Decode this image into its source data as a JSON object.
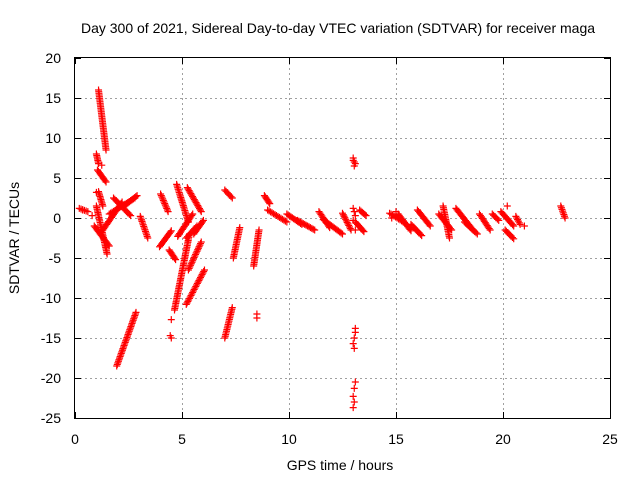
{
  "chart_data": {
    "type": "scatter",
    "title": "Day 300 of 2021, Sidereal Day-to-day VTEC variation (SDTVAR) for receiver maga",
    "xlabel": "GPS time / hours",
    "ylabel": "SDTVAR / TECUs",
    "xlim": [
      0,
      25
    ],
    "ylim": [
      -25,
      20
    ],
    "xticks": [
      0,
      5,
      10,
      15,
      20,
      25
    ],
    "yticks": [
      20,
      15,
      10,
      5,
      0,
      -5,
      -10,
      -15,
      -20,
      -25
    ],
    "grid": true,
    "marker": "+",
    "marker_color": "#ff0000",
    "segments": [
      {
        "x0": 0.2,
        "y0": 1.2,
        "x1": 0.6,
        "y1": 0.8
      },
      {
        "x0": 1.0,
        "y0": 8.0,
        "x1": 1.1,
        "y1": 6.8
      },
      {
        "x0": 1.1,
        "y0": 16.0,
        "x1": 1.45,
        "y1": 8.5
      },
      {
        "x0": 1.05,
        "y0": 6.0,
        "x1": 1.45,
        "y1": 4.5
      },
      {
        "x0": 1.1,
        "y0": 3.3,
        "x1": 1.3,
        "y1": 1.5
      },
      {
        "x0": 1.0,
        "y0": 1.5,
        "x1": 1.5,
        "y1": -4.5
      },
      {
        "x0": 0.9,
        "y0": -1.0,
        "x1": 1.6,
        "y1": -3.5
      },
      {
        "x0": 1.3,
        "y0": -1.5,
        "x1": 2.2,
        "y1": 2.0
      },
      {
        "x0": 1.6,
        "y0": 0.5,
        "x1": 2.8,
        "y1": 2.5
      },
      {
        "x0": 1.8,
        "y0": 2.5,
        "x1": 2.6,
        "y1": 0.3
      },
      {
        "x0": 2.3,
        "y0": 1.5,
        "x1": 2.9,
        "y1": 2.8
      },
      {
        "x0": 1.95,
        "y0": -18.5,
        "x1": 2.85,
        "y1": -11.8
      },
      {
        "x0": 3.05,
        "y0": 0.2,
        "x1": 3.4,
        "y1": -2.5
      },
      {
        "x0": 4.0,
        "y0": 3.0,
        "x1": 4.35,
        "y1": 0.8
      },
      {
        "x0": 3.95,
        "y0": -3.6,
        "x1": 4.5,
        "y1": -1.6
      },
      {
        "x0": 4.4,
        "y0": -4.0,
        "x1": 4.7,
        "y1": -5.2
      },
      {
        "x0": 4.75,
        "y0": 4.2,
        "x1": 5.3,
        "y1": -0.5
      },
      {
        "x0": 4.8,
        "y0": -2.3,
        "x1": 5.5,
        "y1": 0.5
      },
      {
        "x0": 4.65,
        "y0": -11.5,
        "x1": 5.35,
        "y1": -2.0
      },
      {
        "x0": 5.2,
        "y0": -2.5,
        "x1": 5.7,
        "y1": -1.0
      },
      {
        "x0": 5.2,
        "y0": -10.8,
        "x1": 6.05,
        "y1": -6.5
      },
      {
        "x0": 5.25,
        "y0": 3.8,
        "x1": 5.9,
        "y1": 0.8
      },
      {
        "x0": 5.3,
        "y0": -6.5,
        "x1": 5.9,
        "y1": -3.0
      },
      {
        "x0": 5.55,
        "y0": -2.0,
        "x1": 6.0,
        "y1": -0.3
      },
      {
        "x0": 7.0,
        "y0": 3.5,
        "x1": 7.35,
        "y1": 2.5
      },
      {
        "x0": 7.0,
        "y0": -15.0,
        "x1": 7.35,
        "y1": -11.2
      },
      {
        "x0": 7.4,
        "y0": -5.0,
        "x1": 7.7,
        "y1": -1.2
      },
      {
        "x0": 8.35,
        "y0": -6.0,
        "x1": 8.6,
        "y1": -1.5
      },
      {
        "x0": 8.85,
        "y0": 2.8,
        "x1": 9.1,
        "y1": 1.8
      },
      {
        "x0": 9.0,
        "y0": 1.0,
        "x1": 9.9,
        "y1": -0.5
      },
      {
        "x0": 9.9,
        "y0": 0.5,
        "x1": 10.6,
        "y1": -0.8
      },
      {
        "x0": 10.4,
        "y0": -0.3,
        "x1": 11.2,
        "y1": -1.5
      },
      {
        "x0": 11.4,
        "y0": 0.8,
        "x1": 11.9,
        "y1": -1.2
      },
      {
        "x0": 11.6,
        "y0": -0.2,
        "x1": 12.5,
        "y1": -2.0
      },
      {
        "x0": 12.5,
        "y0": 0.6,
        "x1": 12.9,
        "y1": -1.5
      },
      {
        "x0": 13.3,
        "y0": 1.0,
        "x1": 13.6,
        "y1": 0.3
      },
      {
        "x0": 13.1,
        "y0": -0.5,
        "x1": 13.5,
        "y1": -1.7
      },
      {
        "x0": 14.7,
        "y0": 0.6,
        "x1": 15.4,
        "y1": -0.6
      },
      {
        "x0": 15.1,
        "y0": 0.5,
        "x1": 15.7,
        "y1": -1.6
      },
      {
        "x0": 15.7,
        "y0": -0.8,
        "x1": 16.2,
        "y1": -2.2
      },
      {
        "x0": 16.0,
        "y0": 1.0,
        "x1": 16.6,
        "y1": -1.0
      },
      {
        "x0": 17.0,
        "y0": 0.5,
        "x1": 17.6,
        "y1": -1.5
      },
      {
        "x0": 17.2,
        "y0": 1.5,
        "x1": 17.5,
        "y1": -2.5
      },
      {
        "x0": 17.8,
        "y0": 1.2,
        "x1": 18.6,
        "y1": -1.5
      },
      {
        "x0": 18.2,
        "y0": -0.5,
        "x1": 18.8,
        "y1": -2.0
      },
      {
        "x0": 18.9,
        "y0": 0.5,
        "x1": 19.4,
        "y1": -1.5
      },
      {
        "x0": 19.5,
        "y0": 0.5,
        "x1": 19.8,
        "y1": -0.3
      },
      {
        "x0": 19.9,
        "y0": 0.8,
        "x1": 20.5,
        "y1": -1.0
      },
      {
        "x0": 20.1,
        "y0": -1.5,
        "x1": 20.5,
        "y1": -2.6
      },
      {
        "x0": 20.6,
        "y0": 0.2,
        "x1": 20.8,
        "y1": -0.8
      },
      {
        "x0": 22.7,
        "y0": 1.5,
        "x1": 22.9,
        "y1": 0.0
      }
    ],
    "points": [
      [
        0.35,
        1.0
      ],
      [
        1.0,
        3.2
      ],
      [
        0.8,
        0.3
      ],
      [
        1.25,
        6.6
      ],
      [
        4.5,
        -12.7
      ],
      [
        4.45,
        -14.7
      ],
      [
        4.5,
        -15.0
      ],
      [
        8.5,
        -12.5
      ],
      [
        8.5,
        -12.0
      ],
      [
        13.0,
        7.5
      ],
      [
        13.0,
        7.2
      ],
      [
        13.05,
        7.0
      ],
      [
        13.1,
        6.8
      ],
      [
        13.05,
        6.5
      ],
      [
        13.0,
        1.2
      ],
      [
        13.05,
        0.8
      ],
      [
        13.1,
        0.3
      ],
      [
        13.0,
        -0.3
      ],
      [
        13.1,
        -1.5
      ],
      [
        13.1,
        -13.8
      ],
      [
        13.1,
        -14.3
      ],
      [
        13.05,
        -15.0
      ],
      [
        13.0,
        -15.7
      ],
      [
        13.05,
        -16.3
      ],
      [
        13.1,
        -20.5
      ],
      [
        13.05,
        -21.3
      ],
      [
        13.0,
        -22.3
      ],
      [
        13.05,
        -23.0
      ],
      [
        13.0,
        -23.7
      ],
      [
        14.8,
        0.0
      ],
      [
        15.0,
        0.8
      ],
      [
        21.0,
        -1.0
      ],
      [
        20.2,
        1.5
      ]
    ]
  }
}
